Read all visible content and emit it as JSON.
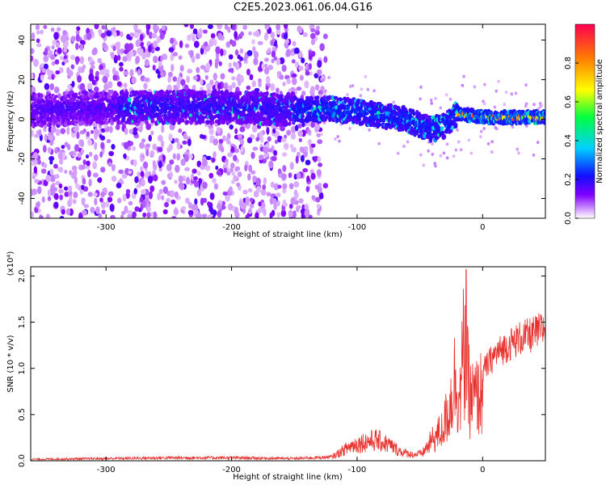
{
  "title": "C2E5.2023.061.06.04.G16",
  "chart_data": [
    {
      "type": "heatmap",
      "xlabel": "Height of straight line (km)",
      "ylabel": "Frequency (Hz)",
      "xlim": [
        -360,
        50
      ],
      "ylim": [
        -50,
        48
      ],
      "xticks": [
        -300,
        -200,
        -100,
        0
      ],
      "yticks": [
        -40,
        -20,
        0,
        20,
        40
      ],
      "grid": false,
      "colorbar": {
        "label": "Normalized spectral amplitude",
        "range": [
          0,
          1
        ],
        "ticks": [
          "0.0",
          "0.2",
          "0.4",
          "0.6",
          "0.8"
        ],
        "colormap": [
          "#ffffff",
          "#d8a8ff",
          "#8000ff",
          "#1010ff",
          "#00d0ff",
          "#00ff40",
          "#ffff00",
          "#ff8000",
          "#ff0040"
        ]
      },
      "band_center_hz": [
        [
          -350,
          5
        ],
        [
          -300,
          6
        ],
        [
          -250,
          6
        ],
        [
          -200,
          6
        ],
        [
          -160,
          5
        ],
        [
          -140,
          5
        ],
        [
          -120,
          5
        ],
        [
          -100,
          4
        ],
        [
          -80,
          2
        ],
        [
          -60,
          0
        ],
        [
          -50,
          -3
        ],
        [
          -40,
          -5
        ],
        [
          -30,
          -3
        ],
        [
          -20,
          3
        ],
        [
          0,
          1
        ],
        [
          50,
          1
        ]
      ],
      "noise_region_x": [
        -360,
        -130
      ]
    },
    {
      "type": "line",
      "xlabel": "Height of straight line (km)",
      "ylabel": "SNR (10 * v/v)",
      "y_multiplier": "(x10⁴)",
      "xlim": [
        -360,
        50
      ],
      "ylim": [
        0,
        2.1
      ],
      "xticks": [
        -300,
        -200,
        -100,
        0
      ],
      "yticks": [
        "0.0",
        "0.5",
        "1.0",
        "1.5",
        "2.0"
      ],
      "color": "#e8302c",
      "grid": false,
      "envelope": [
        [
          -360,
          0.02
        ],
        [
          -300,
          0.03
        ],
        [
          -250,
          0.04
        ],
        [
          -200,
          0.04
        ],
        [
          -150,
          0.03
        ],
        [
          -120,
          0.05
        ],
        [
          -105,
          0.2
        ],
        [
          -95,
          0.25
        ],
        [
          -85,
          0.28
        ],
        [
          -75,
          0.22
        ],
        [
          -65,
          0.12
        ],
        [
          -55,
          0.08
        ],
        [
          -48,
          0.1
        ],
        [
          -40,
          0.3
        ],
        [
          -32,
          0.45
        ],
        [
          -26,
          0.8
        ],
        [
          -22,
          1.2
        ],
        [
          -18,
          0.9
        ],
        [
          -15,
          1.6
        ],
        [
          -10,
          0.9
        ],
        [
          -5,
          0.9
        ],
        [
          0,
          1.0
        ],
        [
          10,
          1.2
        ],
        [
          20,
          1.3
        ],
        [
          30,
          1.38
        ],
        [
          40,
          1.42
        ],
        [
          50,
          1.5
        ]
      ],
      "peak": [
        -13,
        2.07
      ]
    }
  ]
}
